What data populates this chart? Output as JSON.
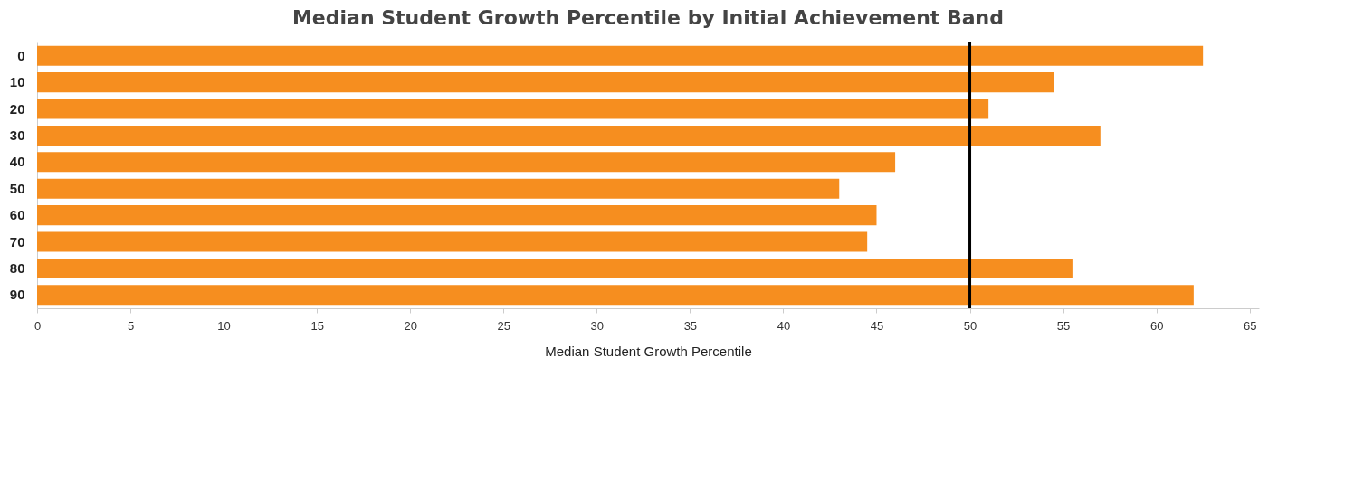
{
  "chart_data": {
    "type": "bar",
    "orientation": "horizontal",
    "title": "Median Student Growth Percentile by Initial Achievement Band",
    "xlabel": "Median Student Growth Percentile",
    "categories": [
      "0",
      "10",
      "20",
      "30",
      "40",
      "50",
      "60",
      "70",
      "80",
      "90"
    ],
    "values": [
      62.5,
      54.5,
      51.0,
      57.0,
      46.0,
      43.0,
      45.0,
      44.5,
      55.5,
      62.0
    ],
    "color": "#f68e1f",
    "xlim": [
      0,
      65.5
    ],
    "xticks": [
      0,
      5,
      10,
      15,
      20,
      25,
      30,
      35,
      40,
      45,
      50,
      55,
      60,
      65
    ],
    "grid": false,
    "ref_lines": [
      {
        "axis": "x",
        "value": 50,
        "color": "#000000"
      }
    ]
  }
}
